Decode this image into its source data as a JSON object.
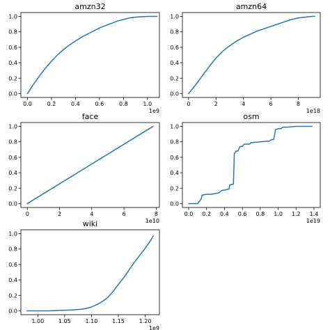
{
  "chart_data": [
    {
      "type": "line",
      "title": "amzn32",
      "xlabel": "",
      "ylabel": "",
      "x_offset_label": "1e9",
      "xlim": [
        -0.055,
        1.1
      ],
      "ylim": [
        -0.05,
        1.05
      ],
      "xticks": [
        0.0,
        0.2,
        0.4,
        0.6,
        0.8,
        1.0
      ],
      "xtick_labels": [
        "0.0",
        "0.2",
        "0.4",
        "0.6",
        "0.8",
        "1.0"
      ],
      "yticks": [
        0.0,
        0.2,
        0.4,
        0.6,
        0.8,
        1.0
      ],
      "ytick_labels": [
        "0.0",
        "0.2",
        "0.4",
        "0.6",
        "0.8",
        "1.0"
      ],
      "grid": false,
      "color": "#1f77b4",
      "x": [
        0.0,
        0.05,
        0.1,
        0.15,
        0.2,
        0.25,
        0.3,
        0.35,
        0.4,
        0.45,
        0.5,
        0.55,
        0.6,
        0.65,
        0.7,
        0.75,
        0.8,
        0.85,
        0.9,
        0.95,
        1.0,
        1.05,
        1.08
      ],
      "y": [
        0.0,
        0.12,
        0.23,
        0.33,
        0.42,
        0.5,
        0.57,
        0.63,
        0.68,
        0.73,
        0.77,
        0.81,
        0.85,
        0.88,
        0.91,
        0.94,
        0.96,
        0.98,
        0.99,
        0.995,
        1.0,
        1.0,
        1.0
      ]
    },
    {
      "type": "line",
      "title": "amzn64",
      "xlabel": "",
      "ylabel": "",
      "x_offset_label": "1e18",
      "xlim": [
        -0.45,
        9.6
      ],
      "ylim": [
        -0.05,
        1.05
      ],
      "xticks": [
        0,
        2,
        4,
        6,
        8
      ],
      "xtick_labels": [
        "0",
        "2",
        "4",
        "6",
        "8"
      ],
      "yticks": [
        0.0,
        0.2,
        0.4,
        0.6,
        0.8,
        1.0
      ],
      "ytick_labels": [
        "0.0",
        "0.2",
        "0.4",
        "0.6",
        "0.8",
        "1.0"
      ],
      "grid": false,
      "color": "#1f77b4",
      "x": [
        0.0,
        0.5,
        1.0,
        1.5,
        2.0,
        2.5,
        3.0,
        3.5,
        4.0,
        4.5,
        5.0,
        5.5,
        6.0,
        6.5,
        7.0,
        7.5,
        8.0,
        8.5,
        9.0,
        9.2
      ],
      "y": [
        0.0,
        0.11,
        0.23,
        0.35,
        0.46,
        0.55,
        0.62,
        0.68,
        0.73,
        0.77,
        0.81,
        0.84,
        0.87,
        0.9,
        0.93,
        0.96,
        0.98,
        0.99,
        1.0,
        1.0
      ]
    },
    {
      "type": "line",
      "title": "face",
      "xlabel": "",
      "ylabel": "",
      "x_offset_label": "1e10",
      "xlim": [
        -0.4,
        8.2
      ],
      "ylim": [
        -0.05,
        1.05
      ],
      "xticks": [
        0,
        2,
        4,
        6,
        8
      ],
      "xtick_labels": [
        "0",
        "2",
        "4",
        "6",
        "8"
      ],
      "yticks": [
        0.0,
        0.2,
        0.4,
        0.6,
        0.8,
        1.0
      ],
      "ytick_labels": [
        "0.0",
        "0.2",
        "0.4",
        "0.6",
        "0.8",
        "1.0"
      ],
      "grid": false,
      "color": "#1f77b4",
      "x": [
        0.0,
        7.8
      ],
      "y": [
        0.0,
        1.0
      ]
    },
    {
      "type": "line",
      "title": "osm",
      "xlabel": "",
      "ylabel": "",
      "x_offset_label": "1e19",
      "xlim": [
        -0.07,
        1.47
      ],
      "ylim": [
        -0.05,
        1.05
      ],
      "xticks": [
        0.0,
        0.2,
        0.4,
        0.6,
        0.8,
        1.0,
        1.2,
        1.4
      ],
      "xtick_labels": [
        "0.0",
        "0.2",
        "0.4",
        "0.6",
        "0.8",
        "1.0",
        "1.2",
        "1.4"
      ],
      "yticks": [
        0.0,
        0.2,
        0.4,
        0.6,
        0.8,
        1.0
      ],
      "ytick_labels": [
        "0.0",
        "0.2",
        "0.4",
        "0.6",
        "0.8",
        "1.0"
      ],
      "grid": false,
      "color": "#1f77b4",
      "x": [
        0.0,
        0.1,
        0.12,
        0.14,
        0.15,
        0.2,
        0.25,
        0.3,
        0.34,
        0.37,
        0.42,
        0.45,
        0.46,
        0.48,
        0.5,
        0.51,
        0.52,
        0.53,
        0.55,
        0.57,
        0.58,
        0.6,
        0.62,
        0.65,
        0.68,
        0.7,
        0.8,
        0.9,
        0.93,
        0.95,
        0.96,
        0.97,
        0.98,
        1.0,
        1.03,
        1.05,
        1.1,
        1.2,
        1.3,
        1.38
      ],
      "y": [
        0.0,
        0.0,
        0.03,
        0.06,
        0.11,
        0.12,
        0.12,
        0.13,
        0.14,
        0.17,
        0.18,
        0.19,
        0.24,
        0.25,
        0.25,
        0.65,
        0.66,
        0.68,
        0.68,
        0.73,
        0.74,
        0.74,
        0.77,
        0.77,
        0.77,
        0.79,
        0.8,
        0.81,
        0.83,
        0.83,
        0.89,
        0.96,
        0.96,
        0.97,
        0.97,
        0.99,
        0.99,
        1.0,
        1.0,
        1.0
      ]
    },
    {
      "type": "line",
      "title": "wiki",
      "xlabel": "",
      "ylabel": "",
      "x_offset_label": "1e9",
      "xlim": [
        0.9685,
        1.2265
      ],
      "ylim": [
        -0.05,
        1.05
      ],
      "xticks": [
        1.0,
        1.05,
        1.1,
        1.15,
        1.2
      ],
      "xtick_labels": [
        "1.00",
        "1.05",
        "1.10",
        "1.15",
        "1.20"
      ],
      "yticks": [
        0.0,
        0.2,
        0.4,
        0.6,
        0.8,
        1.0
      ],
      "ytick_labels": [
        "0.0",
        "0.2",
        "0.4",
        "0.6",
        "0.8",
        "1.0"
      ],
      "grid": false,
      "color": "#1f77b4",
      "x": [
        0.98,
        1.0,
        1.02,
        1.04,
        1.06,
        1.08,
        1.09,
        1.1,
        1.11,
        1.12,
        1.13,
        1.14,
        1.15,
        1.16,
        1.17,
        1.18,
        1.19,
        1.2,
        1.21,
        1.215
      ],
      "y": [
        0.0,
        0.0,
        0.0,
        0.005,
        0.01,
        0.02,
        0.03,
        0.05,
        0.08,
        0.12,
        0.17,
        0.25,
        0.34,
        0.43,
        0.53,
        0.63,
        0.72,
        0.81,
        0.91,
        0.97
      ]
    }
  ]
}
